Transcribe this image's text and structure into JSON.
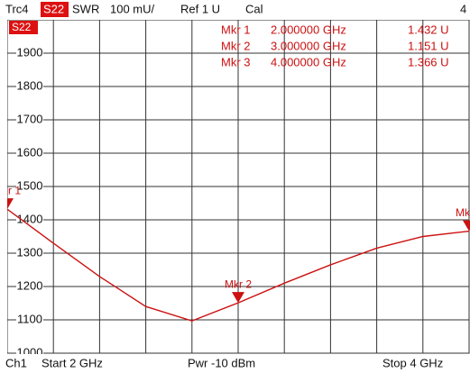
{
  "chart_data": {
    "type": "line",
    "header": {
      "trace": "Trc4",
      "param": "S22",
      "format": "SWR",
      "scale": "100 mU/",
      "ref": "Ref 1 U",
      "cal": "Cal",
      "number": "4"
    },
    "footer": {
      "channel": "Ch1",
      "start": "Start 2 GHz",
      "power": "Pwr -10 dBm",
      "stop": "Stop 4 GHz"
    },
    "trace_label": "S22",
    "x": [
      2.0,
      2.2,
      2.4,
      2.6,
      2.8,
      3.0,
      3.2,
      3.4,
      3.6,
      3.8,
      4.0
    ],
    "series": [
      {
        "name": "Trc4",
        "color": "#cc1111",
        "values": [
          1432,
          1330,
          1230,
          1140,
          1097,
          1151,
          1210,
          1265,
          1315,
          1350,
          1366
        ]
      }
    ],
    "xlim": [
      2,
      4
    ],
    "xticks": [
      2.0,
      2.2,
      2.4,
      2.6,
      2.8,
      3.0,
      3.2,
      3.4,
      3.6,
      3.8,
      4.0
    ],
    "ylim": [
      1000,
      2000
    ],
    "yticks": [
      1000,
      1100,
      1200,
      1300,
      1400,
      1500,
      1600,
      1700,
      1800,
      1900
    ],
    "grid": true,
    "markers": [
      {
        "name": "Mkr 1",
        "x": 2,
        "x_label": "2.000000 GHz",
        "value": 1432,
        "value_label": "1.432 U"
      },
      {
        "name": "Mkr 2",
        "x": 3,
        "x_label": "3.000000 GHz",
        "value": 1151,
        "value_label": "1.151 U"
      },
      {
        "name": "Mkr 3",
        "x": 4,
        "x_label": "4.000000 GHz",
        "value": 1366,
        "value_label": "1.366 U"
      }
    ]
  }
}
